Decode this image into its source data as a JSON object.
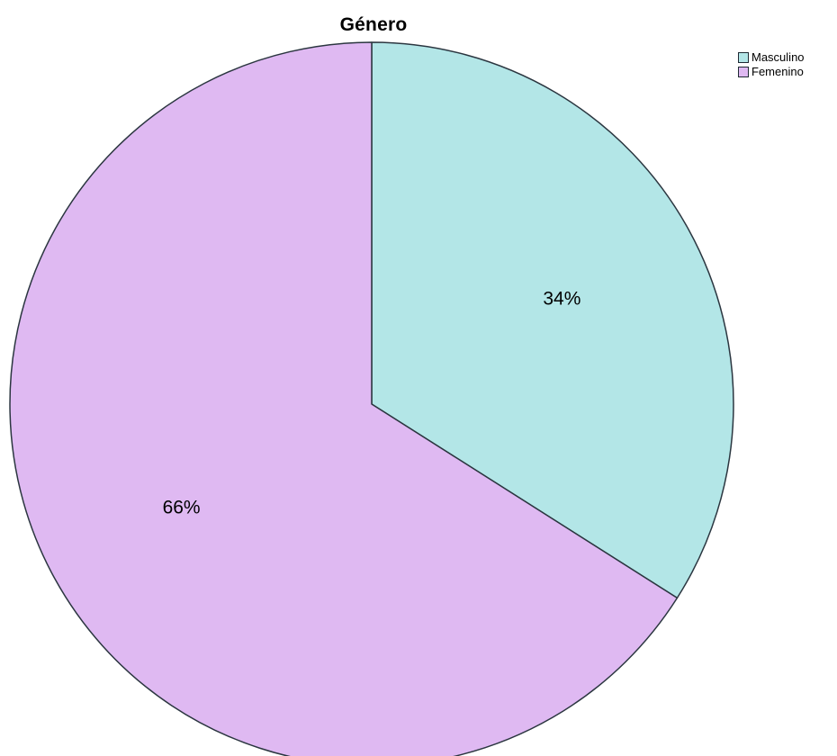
{
  "chart_data": {
    "type": "pie",
    "title": "Género",
    "slices": [
      {
        "label": "Masculino",
        "value": 34,
        "display": "34%",
        "color": "#b3e6e7"
      },
      {
        "label": "Femenino",
        "value": 66,
        "display": "66%",
        "color": "#dfb9f2"
      }
    ],
    "legend_position": "top-right",
    "start_angle": "12 o'clock",
    "direction": "clockwise",
    "outline_color": "#2b3640"
  }
}
